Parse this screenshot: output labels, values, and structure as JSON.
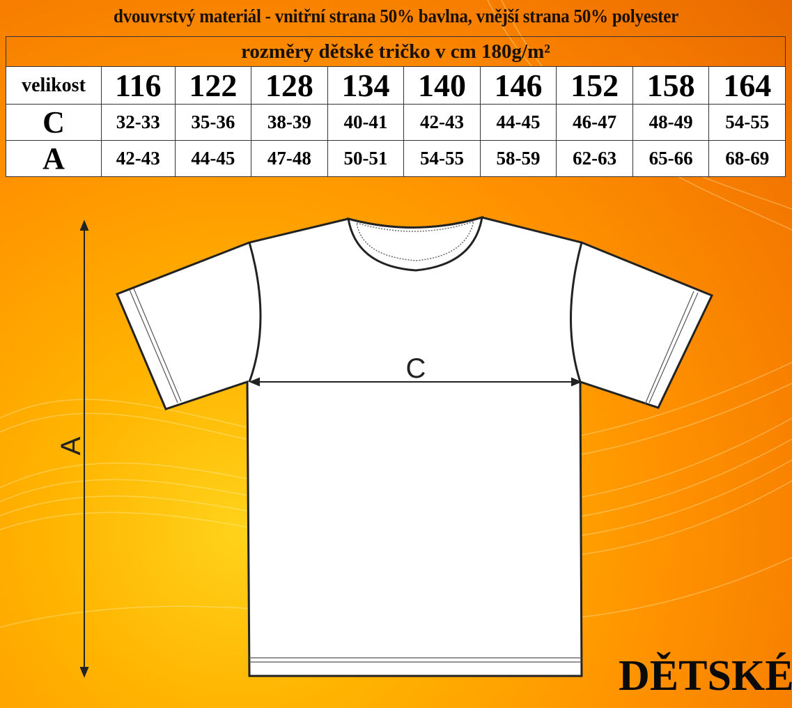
{
  "title": "dvouvrstvý materiál - vnitřní strana 50% bavlna, vnější strana 50% polyester",
  "subtitle": "rozměry dětské tričko v cm    180g/m²",
  "table": {
    "header_label": "velikost",
    "sizes": [
      "116",
      "122",
      "128",
      "134",
      "140",
      "146",
      "152",
      "158",
      "164"
    ],
    "rows": [
      {
        "label": "C",
        "values": [
          "32-33",
          "35-36",
          "38-39",
          "40-41",
          "42-43",
          "44-45",
          "46-47",
          "48-49",
          "54-55"
        ]
      },
      {
        "label": "A",
        "values": [
          "42-43",
          "44-45",
          "47-48",
          "50-51",
          "54-55",
          "58-59",
          "62-63",
          "65-66",
          "68-69"
        ]
      }
    ]
  },
  "diagram": {
    "width_label": "C",
    "length_label": "A"
  },
  "brand": "DĚTSKÉ",
  "colors": {
    "background": "#ff9200",
    "table_bg": "#ffffff",
    "text": "#000000"
  }
}
